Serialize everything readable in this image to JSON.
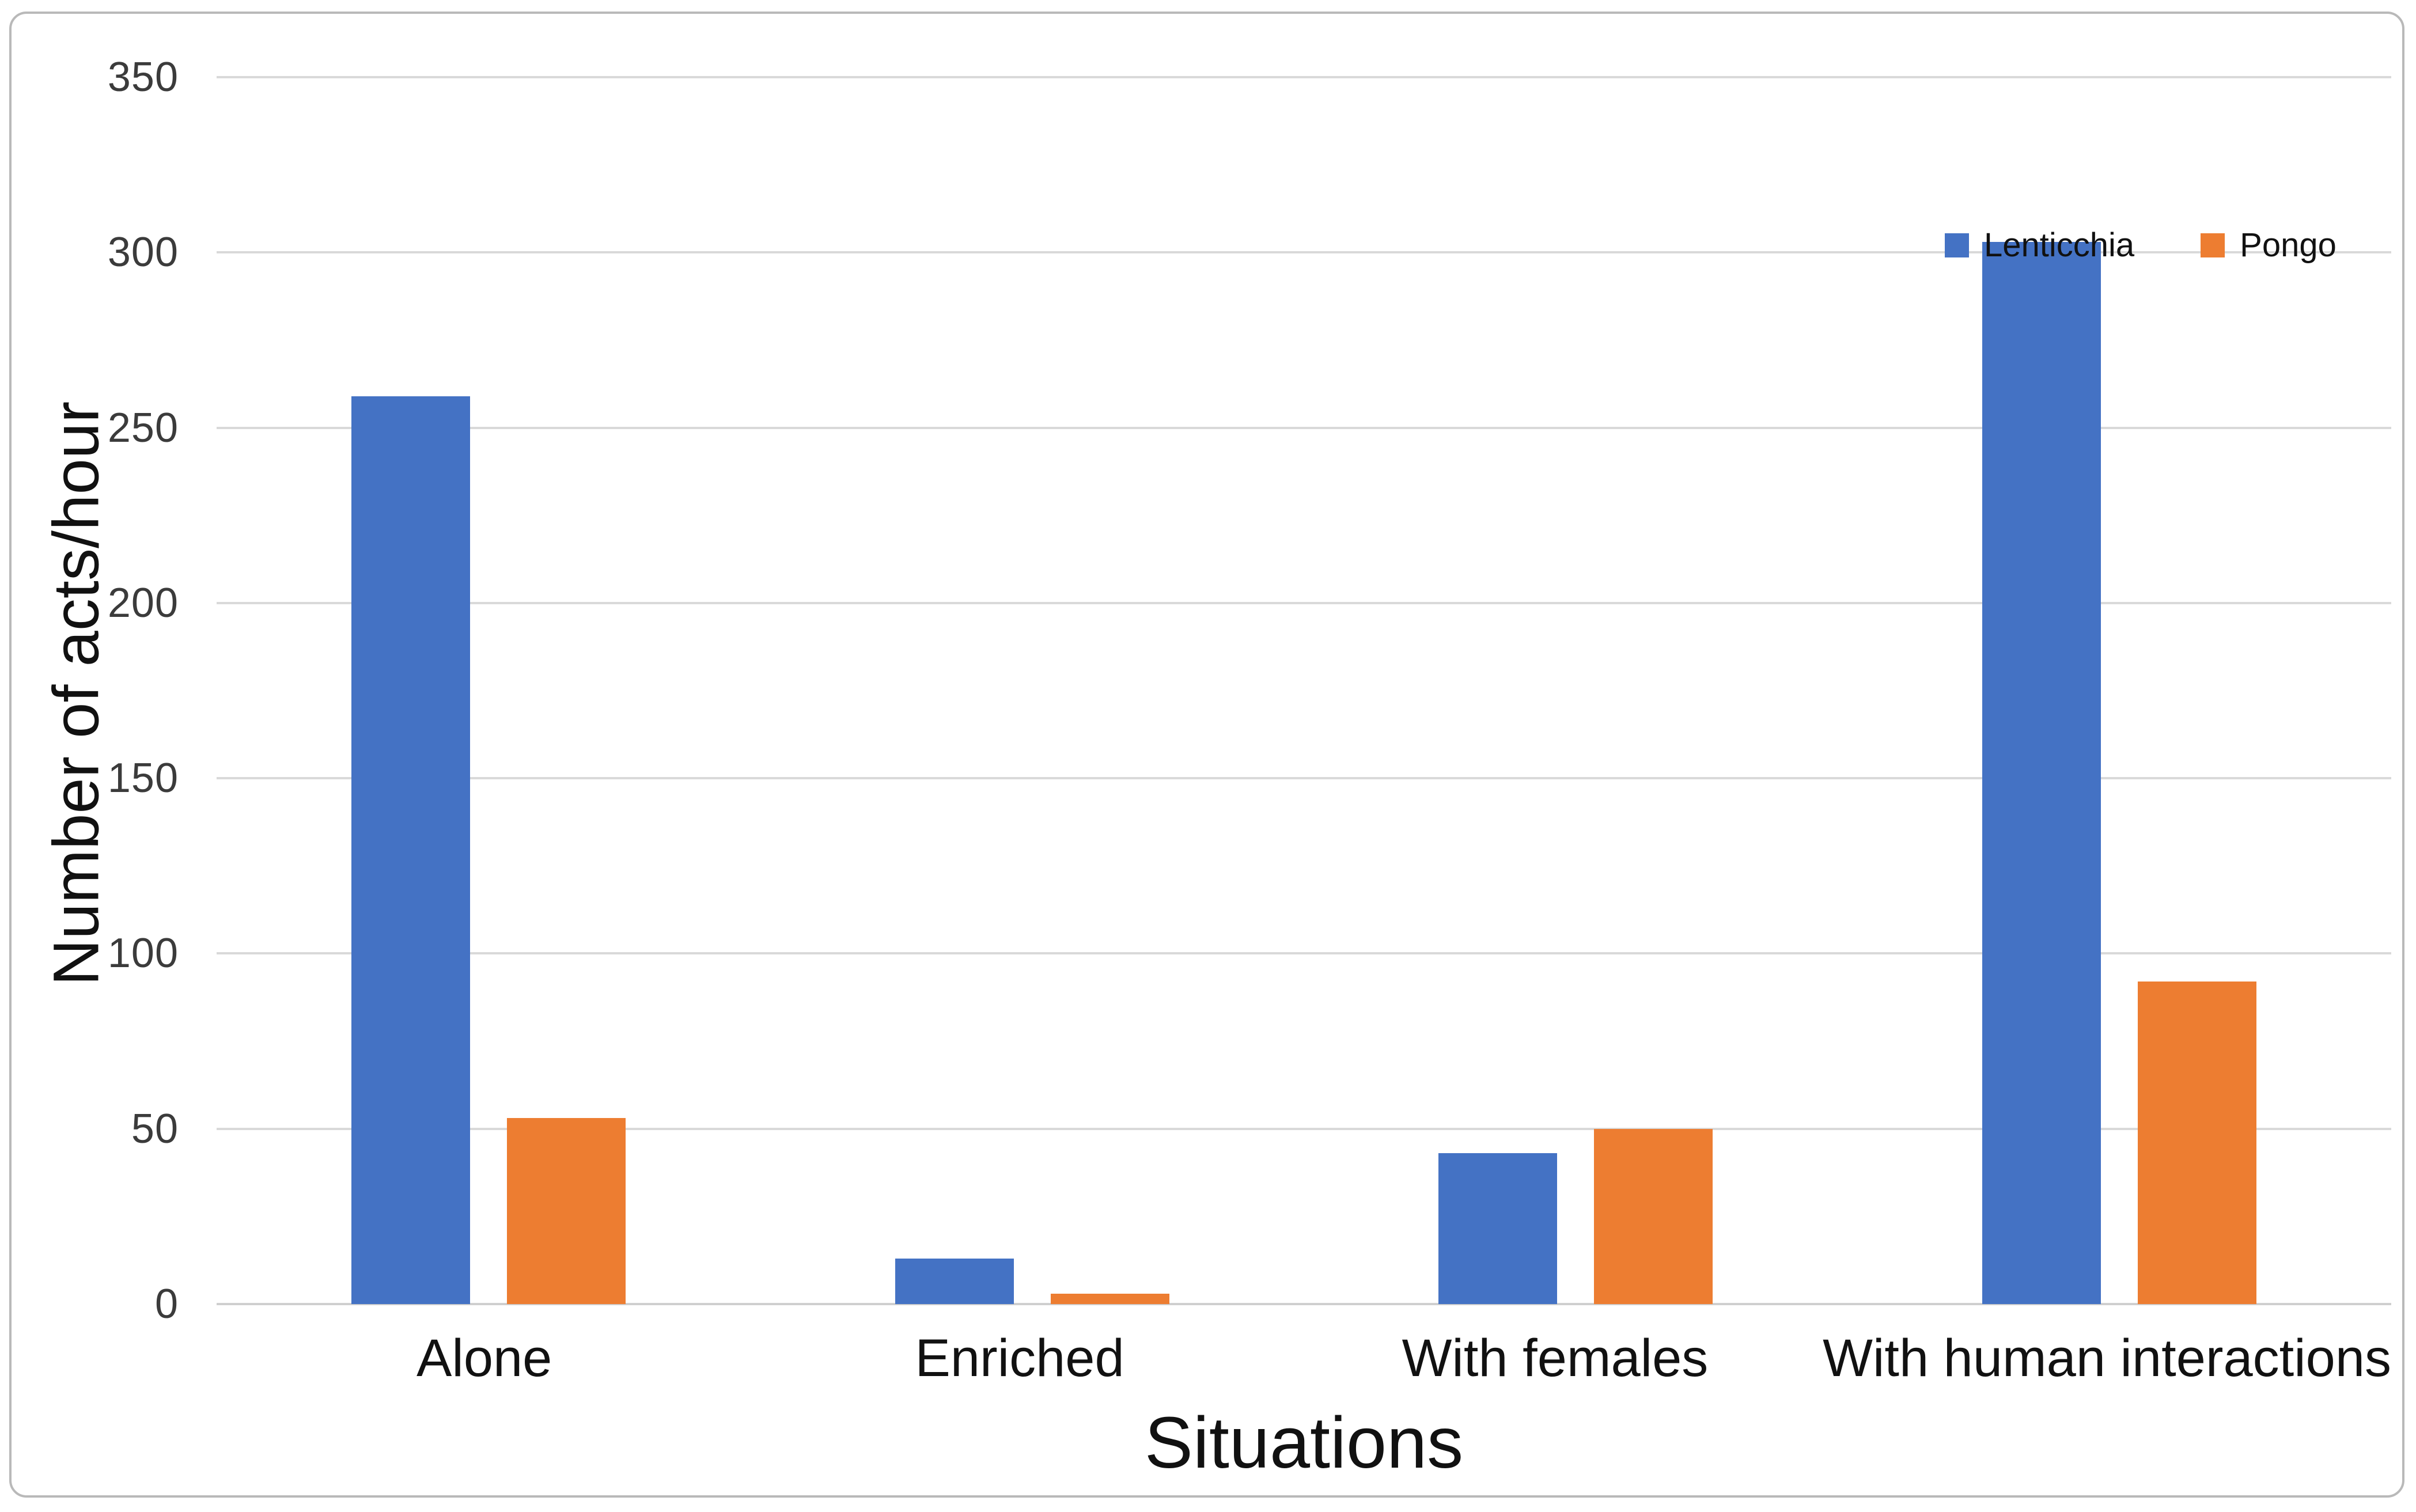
{
  "chart_data": {
    "type": "bar",
    "title": "",
    "categories": [
      "Alone",
      "Enriched",
      "With females",
      "With human interactions"
    ],
    "series": [
      {
        "name": "Lenticchia",
        "color": "#4472C4",
        "values": [
          259,
          13,
          43,
          303
        ]
      },
      {
        "name": "Pongo",
        "color": "#ED7D31",
        "values": [
          53,
          3,
          50,
          92
        ]
      }
    ],
    "xlabel": "Situations",
    "ylabel": "Number of acts/hour",
    "ylim": [
      0,
      350
    ],
    "yticks": [
      0,
      50,
      100,
      150,
      200,
      250,
      300,
      350
    ],
    "grid": true,
    "legend_position": "inside-top-right"
  },
  "colors": {
    "gridline": "#d9d9d9",
    "tick_text": "#3b3b3b",
    "label_text": "#111111",
    "frame_border": "#b9b9b9",
    "background": "#ffffff"
  }
}
